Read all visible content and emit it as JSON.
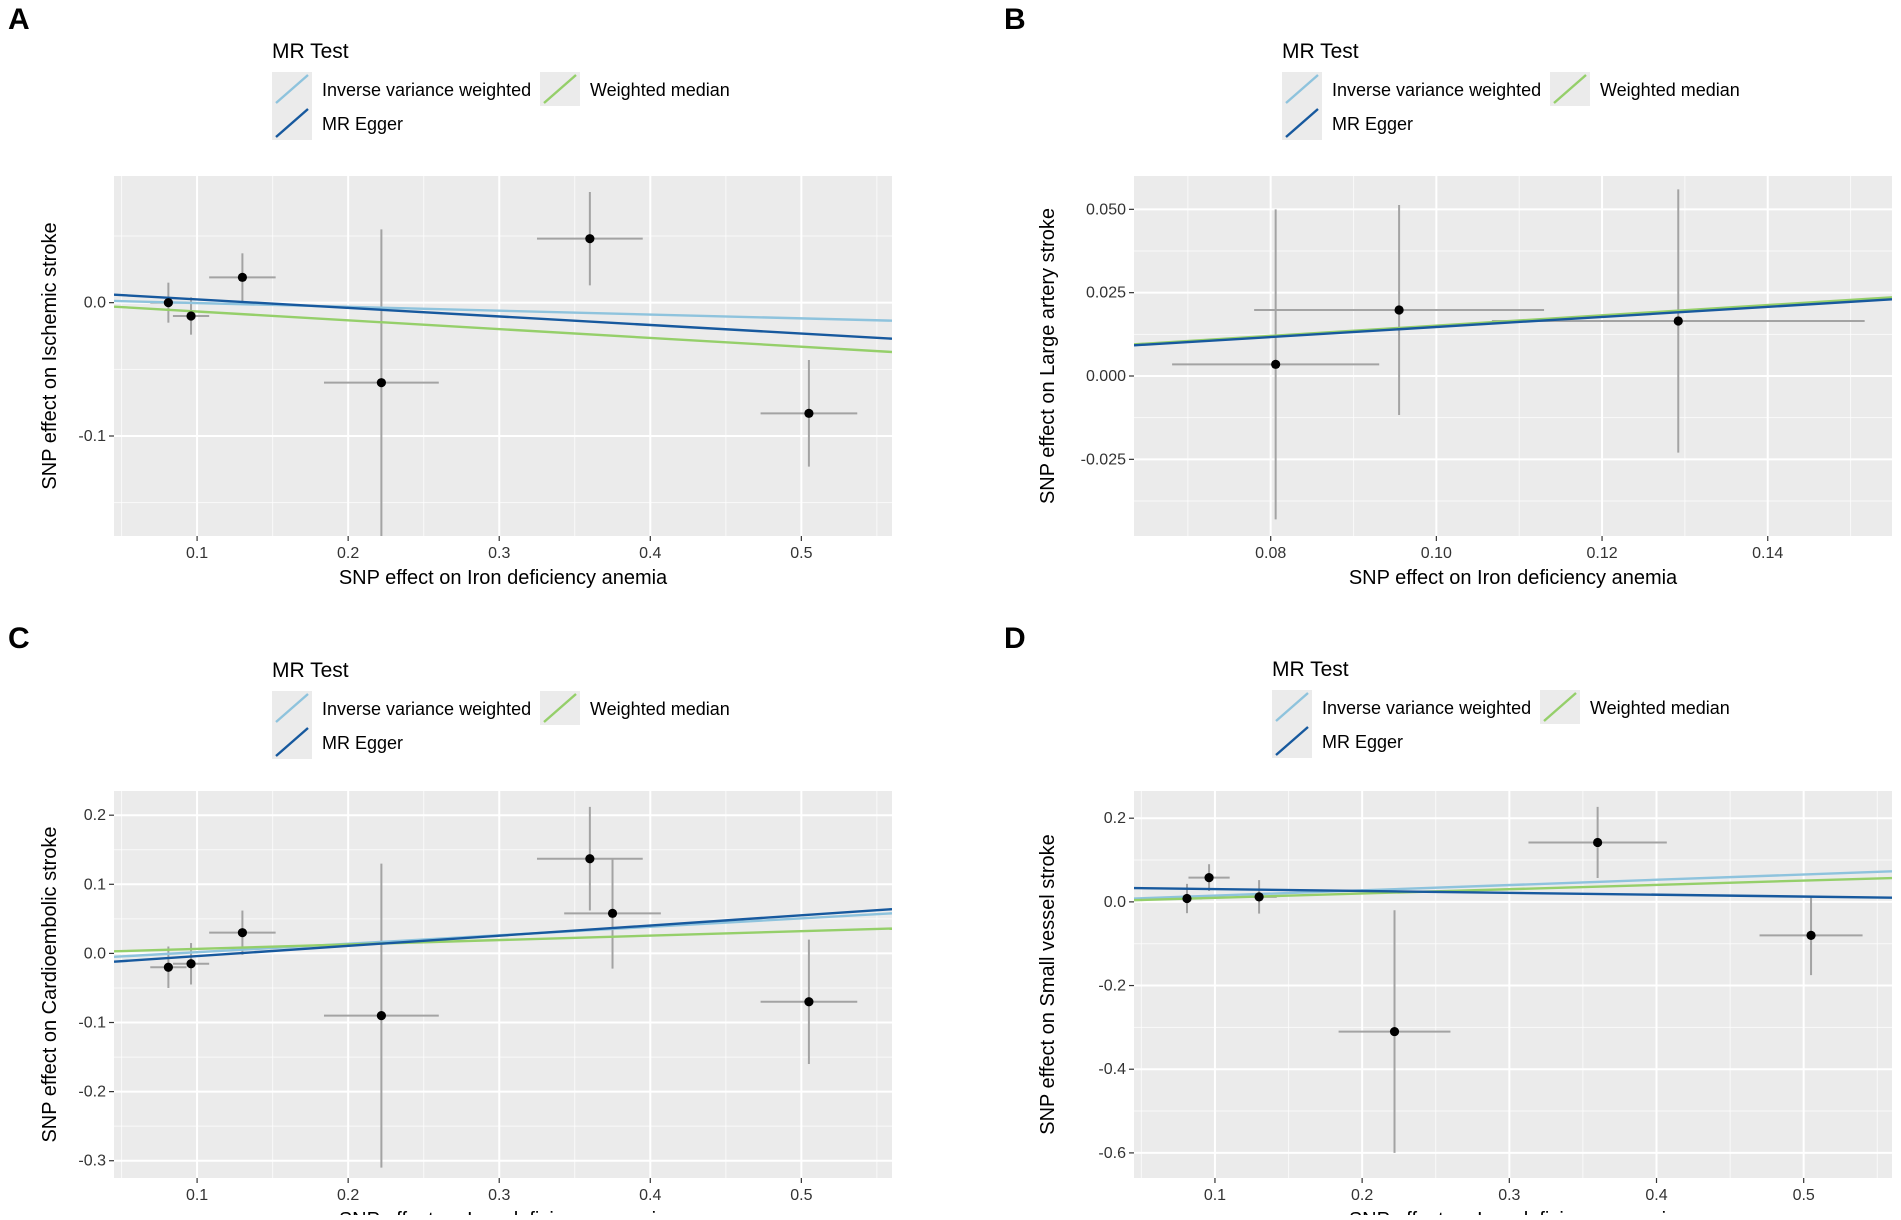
{
  "colors": {
    "ivw": "#8ec3dd",
    "egger": "#17599e",
    "wmedian": "#95cf6a",
    "panel_bg": "#ebebeb",
    "grid": "#ffffff",
    "errorbar": "#a3a3a3",
    "point": "#000000"
  },
  "chart_data": [
    {
      "type": "scatter",
      "panel": "A",
      "legend": {
        "title": "MR Test",
        "entries": [
          {
            "label": "Inverse variance weighted",
            "series": "ivw"
          },
          {
            "label": "Weighted median",
            "series": "wmedian"
          },
          {
            "label": "MR Egger",
            "series": "egger"
          }
        ]
      },
      "xlabel": "SNP effect on Iron deficiency anemia",
      "ylabel": "SNP effect on Ischemic stroke",
      "xlim": [
        0.045,
        0.56
      ],
      "ylim": [
        -0.175,
        0.095
      ],
      "xticks": [
        0.1,
        0.2,
        0.3,
        0.4,
        0.5
      ],
      "xtick_labels": [
        "0.1",
        "0.2",
        "0.3",
        "0.4",
        "0.5"
      ],
      "yticks": [
        -0.1,
        0.0
      ],
      "ytick_labels": [
        "-0.1",
        "0.0"
      ],
      "points": [
        {
          "x": 0.081,
          "y": 0.0,
          "xerr": 0.012,
          "yerr": 0.015
        },
        {
          "x": 0.096,
          "y": -0.01,
          "xerr": 0.012,
          "yerr": 0.014
        },
        {
          "x": 0.13,
          "y": 0.019,
          "xerr": 0.022,
          "yerr": 0.018
        },
        {
          "x": 0.222,
          "y": -0.06,
          "xerr": 0.038,
          "yerr": 0.115
        },
        {
          "x": 0.36,
          "y": 0.048,
          "xerr": 0.035,
          "yerr": 0.035
        },
        {
          "x": 0.505,
          "y": -0.083,
          "xerr": 0.032,
          "yerr": 0.04
        }
      ],
      "lines": [
        {
          "series": "ivw",
          "x": [
            0.045,
            0.56
          ],
          "y": [
            0.0013,
            -0.0135
          ]
        },
        {
          "series": "wmedian",
          "x": [
            0.045,
            0.56
          ],
          "y": [
            -0.003,
            -0.037
          ]
        },
        {
          "series": "egger",
          "x": [
            0.045,
            0.56
          ],
          "y": [
            0.006,
            -0.027
          ]
        }
      ]
    },
    {
      "type": "scatter",
      "panel": "B",
      "legend": {
        "title": "MR Test",
        "entries": [
          {
            "label": "Inverse variance weighted",
            "series": "ivw"
          },
          {
            "label": "Weighted median",
            "series": "wmedian"
          },
          {
            "label": "MR Egger",
            "series": "egger"
          }
        ]
      },
      "xlabel": "SNP effect on Iron deficiency anemia",
      "ylabel": "SNP effect on Large artery stroke",
      "xlim": [
        0.0635,
        0.155
      ],
      "ylim": [
        -0.048,
        0.06
      ],
      "xticks": [
        0.08,
        0.1,
        0.12,
        0.14
      ],
      "xtick_labels": [
        "0.08",
        "0.10",
        "0.12",
        "0.14"
      ],
      "yticks": [
        -0.025,
        0.0,
        0.025,
        0.05
      ],
      "ytick_labels": [
        "-0.025",
        "0.000",
        "0.025",
        "0.050"
      ],
      "points": [
        {
          "x": 0.0806,
          "y": 0.0035,
          "xerr": 0.0125,
          "yerr": 0.0465
        },
        {
          "x": 0.0955,
          "y": 0.0198,
          "xerr": 0.0175,
          "yerr": 0.0315
        },
        {
          "x": 0.1292,
          "y": 0.0165,
          "xerr": 0.0225,
          "yerr": 0.0395
        }
      ],
      "lines": [
        {
          "series": "ivw",
          "x": [
            0.0635,
            0.155
          ],
          "y": [
            0.0093,
            0.0233
          ]
        },
        {
          "series": "wmedian",
          "x": [
            0.0635,
            0.155
          ],
          "y": [
            0.0095,
            0.0236
          ]
        },
        {
          "series": "egger",
          "x": [
            0.0635,
            0.155
          ],
          "y": [
            0.0092,
            0.023
          ]
        }
      ]
    },
    {
      "type": "scatter",
      "panel": "C",
      "legend": {
        "title": "MR Test",
        "entries": [
          {
            "label": "Inverse variance weighted",
            "series": "ivw"
          },
          {
            "label": "Weighted median",
            "series": "wmedian"
          },
          {
            "label": "MR Egger",
            "series": "egger"
          }
        ]
      },
      "xlabel": "SNP effect on Iron deficiency anemia",
      "ylabel": "SNP effect on Cardioembolic stroke",
      "xlim": [
        0.045,
        0.56
      ],
      "ylim": [
        -0.325,
        0.235
      ],
      "xticks": [
        0.1,
        0.2,
        0.3,
        0.4,
        0.5
      ],
      "xtick_labels": [
        "0.1",
        "0.2",
        "0.3",
        "0.4",
        "0.5"
      ],
      "yticks": [
        -0.3,
        -0.2,
        -0.1,
        0.0,
        0.1,
        0.2
      ],
      "ytick_labels": [
        "-0.3",
        "-0.2",
        "-0.1",
        "0.0",
        "0.1",
        "0.2"
      ],
      "points": [
        {
          "x": 0.081,
          "y": -0.02,
          "xerr": 0.012,
          "yerr": 0.03
        },
        {
          "x": 0.096,
          "y": -0.015,
          "xerr": 0.012,
          "yerr": 0.03
        },
        {
          "x": 0.13,
          "y": 0.03,
          "xerr": 0.022,
          "yerr": 0.032
        },
        {
          "x": 0.222,
          "y": -0.09,
          "xerr": 0.038,
          "yerr": 0.22
        },
        {
          "x": 0.36,
          "y": 0.137,
          "xerr": 0.035,
          "yerr": 0.075
        },
        {
          "x": 0.375,
          "y": 0.058,
          "xerr": 0.032,
          "yerr": 0.08
        },
        {
          "x": 0.505,
          "y": -0.07,
          "xerr": 0.032,
          "yerr": 0.09
        }
      ],
      "lines": [
        {
          "series": "ivw",
          "x": [
            0.045,
            0.56
          ],
          "y": [
            -0.005,
            0.058
          ]
        },
        {
          "series": "wmedian",
          "x": [
            0.045,
            0.56
          ],
          "y": [
            0.003,
            0.036
          ]
        },
        {
          "series": "egger",
          "x": [
            0.045,
            0.56
          ],
          "y": [
            -0.012,
            0.064
          ]
        }
      ]
    },
    {
      "type": "scatter",
      "panel": "D",
      "legend": {
        "title": "MR Test",
        "entries": [
          {
            "label": "Inverse variance weighted",
            "series": "ivw"
          },
          {
            "label": "Weighted median",
            "series": "wmedian"
          },
          {
            "label": "MR Egger",
            "series": "egger"
          }
        ]
      },
      "xlabel": "SNP effect on Iron deficiency anemia",
      "ylabel": "SNP effect on Small vessel stroke",
      "xlim": [
        0.045,
        0.56
      ],
      "ylim": [
        -0.66,
        0.265
      ],
      "xticks": [
        0.1,
        0.2,
        0.3,
        0.4,
        0.5
      ],
      "xtick_labels": [
        "0.1",
        "0.2",
        "0.3",
        "0.4",
        "0.5"
      ],
      "yticks": [
        -0.6,
        -0.4,
        -0.2,
        0.0,
        0.2
      ],
      "ytick_labels": [
        "-0.6",
        "-0.4",
        "-0.2",
        "0.0",
        "0.2"
      ],
      "points": [
        {
          "x": 0.081,
          "y": 0.008,
          "xerr": 0.01,
          "yerr": 0.035
        },
        {
          "x": 0.096,
          "y": 0.058,
          "xerr": 0.014,
          "yerr": 0.032
        },
        {
          "x": 0.13,
          "y": 0.012,
          "xerr": 0.012,
          "yerr": 0.04
        },
        {
          "x": 0.222,
          "y": -0.31,
          "xerr": 0.038,
          "yerr": 0.29
        },
        {
          "x": 0.36,
          "y": 0.142,
          "xerr": 0.047,
          "yerr": 0.085
        },
        {
          "x": 0.505,
          "y": -0.08,
          "xerr": 0.035,
          "yerr": 0.095
        }
      ],
      "lines": [
        {
          "series": "ivw",
          "x": [
            0.045,
            0.56
          ],
          "y": [
            0.008,
            0.073
          ]
        },
        {
          "series": "wmedian",
          "x": [
            0.045,
            0.56
          ],
          "y": [
            0.004,
            0.057
          ]
        },
        {
          "series": "egger",
          "x": [
            0.045,
            0.56
          ],
          "y": [
            0.033,
            0.01
          ]
        }
      ]
    }
  ]
}
